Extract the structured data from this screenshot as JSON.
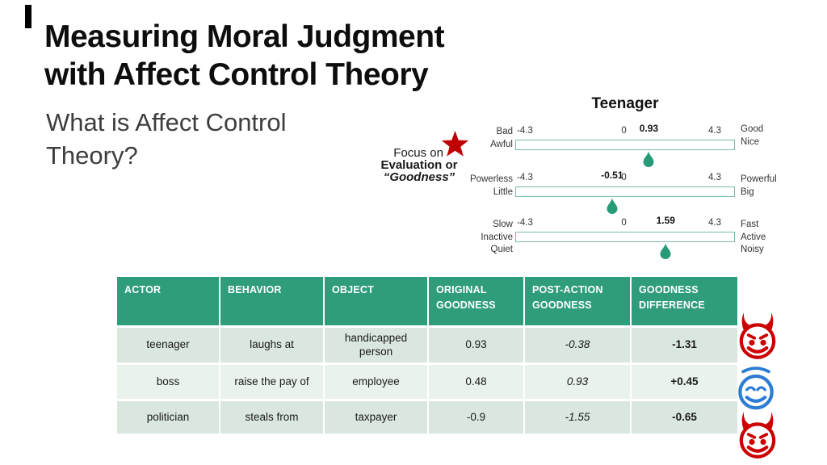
{
  "slide": {
    "title_lines": [
      "Measuring Moral Judgment",
      "with Affect Control Theory"
    ],
    "subtitle_lines": [
      "What is Affect Control",
      "Theory?"
    ]
  },
  "focus_note": {
    "line1": "Focus on",
    "line2": "Evaluation or",
    "line3": "“Goodness”"
  },
  "chart_data": {
    "type": "slider-scales",
    "title": "Teenager",
    "axis_min": -4.3,
    "axis_max": 4.3,
    "tick_labels": {
      "min": "-4.3",
      "zero": "0",
      "max": "4.3"
    },
    "scales": [
      {
        "left_labels": [
          "Bad",
          "Awful"
        ],
        "right_labels": [
          "Good",
          "Nice"
        ],
        "value": 0.93,
        "value_label": "0.93"
      },
      {
        "left_labels": [
          "Powerless",
          "Little"
        ],
        "right_labels": [
          "Powerful",
          "Big"
        ],
        "value": -0.51,
        "value_label": "-0.51"
      },
      {
        "left_labels": [
          "Slow",
          "Inactive",
          "Quiet"
        ],
        "right_labels": [
          "Fast",
          "Active",
          "Noisy"
        ],
        "value": 1.59,
        "value_label": "1.59"
      }
    ]
  },
  "table": {
    "headers": [
      "ACTOR",
      "BEHAVIOR",
      "OBJECT",
      "ORIGINAL GOODNESS",
      "POST-ACTION GOODNESS",
      "GOODNESS DIFFERENCE"
    ],
    "rows": [
      {
        "actor": "teenager",
        "behavior": "laughs at",
        "object": "handicapped person",
        "original": "0.93",
        "post": "-0.38",
        "diff": "-1.31",
        "sentiment": "devil"
      },
      {
        "actor": "boss",
        "behavior": "raise the pay of",
        "object": "employee",
        "original": "0.48",
        "post": "0.93",
        "diff": "+0.45",
        "sentiment": "angel"
      },
      {
        "actor": "politician",
        "behavior": "steals from",
        "object": "taxpayer",
        "original": "-0.9",
        "post": "-1.55",
        "diff": "-0.65",
        "sentiment": "devil"
      }
    ],
    "row_icons": [
      "devil-emoticon",
      "angel-emoticon",
      "devil-emoticon"
    ]
  },
  "theme": {
    "accent": "#2F9C7C",
    "row_a": "#D9E7DF",
    "row_b": "#EAF2EC",
    "track_border": "#7ABCA2",
    "drop": "#279B78",
    "star": "#C00000",
    "devil": "#CC0000",
    "angel": "#2B7CD3",
    "title_color": "#0D0D0D",
    "subtitle_color": "#3D3D3D"
  }
}
